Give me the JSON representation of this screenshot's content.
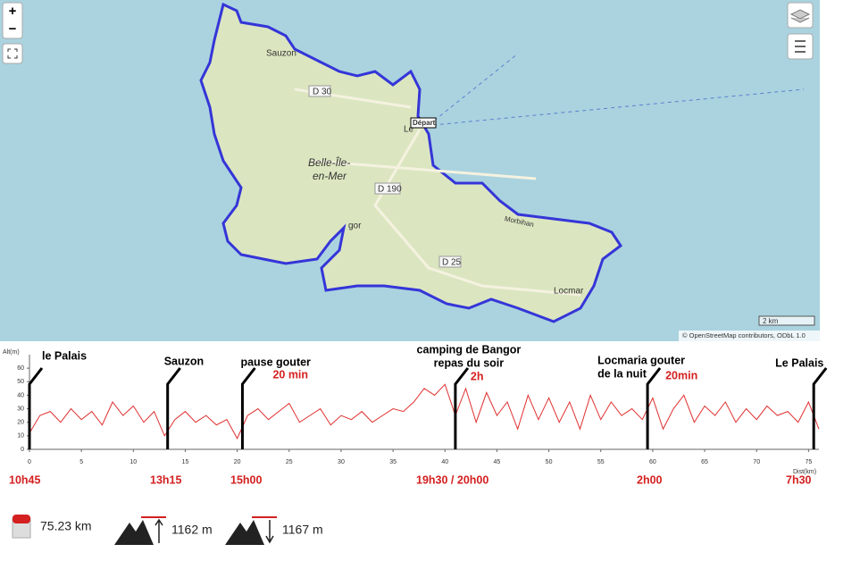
{
  "map": {
    "zoom_in": "+",
    "zoom_out": "−",
    "labels": [
      "Sauzon",
      "D 30",
      "Départ",
      "Le",
      "Belle-Île-",
      "en-Mer",
      "D 190",
      "gor",
      "D 25",
      "Locmar",
      "Morbihan"
    ],
    "scale": "2 km",
    "attribution": "© OpenStreetMap contributors, ODbL 1.0"
  },
  "chart_data": {
    "type": "line",
    "y_label": "Alt(m)",
    "x_label": "Dist(km)",
    "xlim": [
      0,
      76
    ],
    "xticks": [
      0,
      5,
      10,
      15,
      20,
      25,
      30,
      35,
      40,
      45,
      50,
      55,
      60,
      65,
      70,
      75
    ],
    "ylim": [
      0,
      70
    ],
    "yticks": [
      0,
      10,
      20,
      30,
      40,
      50,
      60
    ],
    "x": [
      0,
      1,
      2,
      3,
      4,
      5,
      6,
      7,
      8,
      9,
      10,
      11,
      12,
      13,
      14,
      15,
      16,
      17,
      18,
      19,
      20,
      21,
      22,
      23,
      24,
      25,
      26,
      27,
      28,
      29,
      30,
      31,
      32,
      33,
      34,
      35,
      36,
      37,
      38,
      39,
      40,
      41,
      42,
      43,
      44,
      45,
      46,
      47,
      48,
      49,
      50,
      51,
      52,
      53,
      54,
      55,
      56,
      57,
      58,
      59,
      60,
      61,
      62,
      63,
      64,
      65,
      66,
      67,
      68,
      69,
      70,
      71,
      72,
      73,
      74,
      75,
      76
    ],
    "series": [
      {
        "name": "Altitude",
        "color": "#e03030",
        "values": [
          12,
          25,
          28,
          20,
          30,
          22,
          28,
          18,
          35,
          25,
          32,
          20,
          28,
          10,
          22,
          28,
          20,
          25,
          18,
          22,
          8,
          25,
          30,
          22,
          28,
          34,
          20,
          25,
          30,
          18,
          25,
          22,
          28,
          20,
          25,
          30,
          28,
          35,
          45,
          40,
          48,
          25,
          45,
          20,
          42,
          25,
          35,
          15,
          40,
          22,
          38,
          20,
          35,
          15,
          40,
          22,
          35,
          25,
          30,
          22,
          38,
          15,
          30,
          40,
          20,
          32,
          25,
          35,
          20,
          30,
          22,
          32,
          25,
          28,
          20,
          35,
          15
        ]
      }
    ],
    "annotations": [
      {
        "x": 0,
        "label": [
          "le Palais"
        ],
        "time": "10h45"
      },
      {
        "x": 13.3,
        "label": [
          "Sauzon"
        ],
        "time": "13h15"
      },
      {
        "x": 20.5,
        "label": [
          "pause gouter"
        ],
        "duration": "20 min",
        "time": "15h00"
      },
      {
        "x": 41,
        "label": [
          "camping de Bangor",
          "repas du soir"
        ],
        "duration": "2h",
        "time": "19h30 / 20h00"
      },
      {
        "x": 59.5,
        "label": [
          "Locmaria gouter",
          "de la nuit"
        ],
        "duration": "20min",
        "time": "2h00"
      },
      {
        "x": 75.5,
        "label": [
          "Le Palais"
        ],
        "time": "7h30"
      }
    ]
  },
  "stats": {
    "distance": "75.23 km",
    "ascent": "1162 m",
    "descent": "1167 m"
  }
}
